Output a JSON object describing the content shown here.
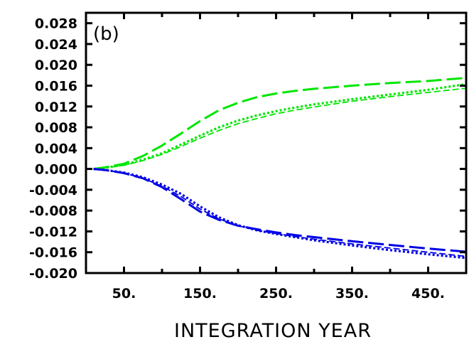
{
  "chart_data": {
    "type": "line",
    "panel_label": "(b)",
    "xlabel": "INTEGRATION YEAR",
    "ylabel": "",
    "xlim": [
      0,
      500
    ],
    "ylim": [
      -0.02,
      0.03
    ],
    "x_ticks": [
      50,
      150,
      250,
      350,
      450
    ],
    "x_tick_labels": [
      "50.",
      "150.",
      "250.",
      "350.",
      "450."
    ],
    "x_minor_ticks": [
      0,
      100,
      200,
      300,
      400,
      500
    ],
    "y_ticks": [
      -0.02,
      -0.016,
      -0.012,
      -0.008,
      -0.004,
      0.0,
      0.004,
      0.008,
      0.012,
      0.016,
      0.02,
      0.024,
      0.028
    ],
    "y_tick_labels": [
      "-0.020",
      "-0.016",
      "-0.012",
      "-0.008",
      "-0.004",
      "0.000",
      "0.004",
      "0.008",
      "0.012",
      "0.016",
      "0.020",
      "0.024",
      "0.028"
    ],
    "grid": false,
    "series": [
      {
        "color": "#00e600",
        "style": "dashed-long",
        "x": [
          10,
          25,
          50,
          75,
          100,
          125,
          150,
          175,
          200,
          225,
          250,
          275,
          300,
          350,
          400,
          450,
          500
        ],
        "y": [
          0.0,
          0.0003,
          0.001,
          0.0025,
          0.0045,
          0.0068,
          0.0092,
          0.0113,
          0.0127,
          0.0138,
          0.0145,
          0.015,
          0.0154,
          0.016,
          0.0165,
          0.0169,
          0.0175
        ]
      },
      {
        "color": "#00e600",
        "style": "dotted",
        "x": [
          10,
          25,
          50,
          75,
          100,
          125,
          150,
          175,
          200,
          225,
          250,
          275,
          300,
          350,
          400,
          450,
          500
        ],
        "y": [
          0.0,
          0.0002,
          0.0008,
          0.0018,
          0.003,
          0.0047,
          0.0064,
          0.008,
          0.0093,
          0.0103,
          0.0111,
          0.0118,
          0.0124,
          0.0134,
          0.0143,
          0.0152,
          0.0163
        ]
      },
      {
        "color": "#00e600",
        "style": "dashed-short",
        "x": [
          10,
          25,
          50,
          75,
          100,
          125,
          150,
          175,
          200,
          225,
          250,
          275,
          300,
          350,
          400,
          450,
          500
        ],
        "y": [
          0.0,
          0.0002,
          0.0007,
          0.0016,
          0.0028,
          0.0043,
          0.0059,
          0.0074,
          0.0087,
          0.0097,
          0.0106,
          0.0113,
          0.0119,
          0.013,
          0.0139,
          0.0147,
          0.0155
        ]
      },
      {
        "color": "#0000e6",
        "style": "dashed-long",
        "x": [
          10,
          25,
          50,
          75,
          100,
          125,
          150,
          175,
          200,
          225,
          250,
          275,
          300,
          350,
          400,
          450,
          500
        ],
        "y": [
          0.0,
          -0.0002,
          -0.0008,
          -0.0018,
          -0.0035,
          -0.0058,
          -0.0082,
          -0.0098,
          -0.0109,
          -0.0116,
          -0.0122,
          -0.0127,
          -0.0131,
          -0.0139,
          -0.0146,
          -0.0153,
          -0.0159
        ]
      },
      {
        "color": "#0000e6",
        "style": "dotted",
        "x": [
          10,
          25,
          50,
          75,
          100,
          125,
          150,
          175,
          200,
          225,
          250,
          275,
          300,
          350,
          400,
          450,
          500
        ],
        "y": [
          0.0,
          -0.0002,
          -0.0007,
          -0.0016,
          -0.003,
          -0.0048,
          -0.0072,
          -0.0093,
          -0.0108,
          -0.0118,
          -0.0125,
          -0.0131,
          -0.0137,
          -0.0147,
          -0.0156,
          -0.0164,
          -0.0171
        ]
      },
      {
        "color": "#0000e6",
        "style": "dashed-short",
        "x": [
          10,
          25,
          50,
          75,
          100,
          125,
          150,
          175,
          200,
          225,
          250,
          275,
          300,
          350,
          400,
          450,
          500
        ],
        "y": [
          0.0,
          -0.0002,
          -0.0008,
          -0.0018,
          -0.0033,
          -0.0053,
          -0.0077,
          -0.0096,
          -0.0109,
          -0.0118,
          -0.0124,
          -0.013,
          -0.0135,
          -0.0144,
          -0.0152,
          -0.016,
          -0.0168
        ]
      }
    ]
  }
}
